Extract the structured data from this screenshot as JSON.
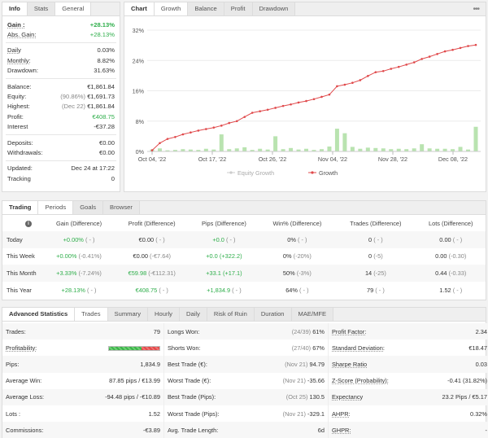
{
  "info": {
    "tabs": [
      "Info",
      "Stats",
      "General"
    ],
    "rows": [
      {
        "label": "Gain :",
        "value": "+28.13%",
        "cls": "pos",
        "u": true,
        "bold": true
      },
      {
        "label": "Abs. Gain:",
        "value": "+28.13%",
        "cls": "pos",
        "u": true
      },
      {
        "sep": true
      },
      {
        "label": "Daily",
        "value": "0.03%",
        "u": true
      },
      {
        "label": "Monthly:",
        "value": "8.82%",
        "u": true
      },
      {
        "label": "Drawdown:",
        "value": "31.63%"
      },
      {
        "sep": true
      },
      {
        "label": "Balance:",
        "value": "€1,861.84"
      },
      {
        "label": "Equity:",
        "prefix": "(90.86%)",
        "value": "€1,691.73"
      },
      {
        "label": "Highest:",
        "prefix": "(Dec 22)",
        "value": "€1,861.84",
        "muted": true
      },
      {
        "label": "Profit:",
        "value": "€408.75",
        "cls": "pos"
      },
      {
        "label": "Interest",
        "value": "-€37.28"
      },
      {
        "sep": true
      },
      {
        "label": "Deposits:",
        "value": "€0.00"
      },
      {
        "label": "Withdrawals:",
        "value": "€0.00"
      },
      {
        "sep": true
      },
      {
        "label": "Updated:",
        "value": "Dec 24 at 17:22"
      },
      {
        "label": "Tracking",
        "value": "0"
      }
    ]
  },
  "chart": {
    "tabs": [
      "Chart",
      "Growth",
      "Balance",
      "Profit",
      "Drawdown"
    ],
    "menu_icon": "dots-icon",
    "legend": [
      {
        "name": "Equity Growth",
        "color": "#cccccc"
      },
      {
        "name": "Growth",
        "color": "#e0494b"
      }
    ]
  },
  "chart_data": {
    "type": "line",
    "x_ticks": [
      "Oct 04, '22",
      "Oct 17, '22",
      "Oct 26, '22",
      "Nov 04, '22",
      "Nov 28, '22",
      "Dec 08, '22"
    ],
    "y_ticks": [
      "0%",
      "8%",
      "16%",
      "24%",
      "32%"
    ],
    "ylim": [
      0,
      32
    ],
    "series": [
      {
        "name": "Growth",
        "color": "#e0494b",
        "values": [
          0.3,
          2.2,
          3.3,
          3.8,
          4.5,
          5.0,
          5.5,
          5.9,
          6.3,
          6.8,
          7.5,
          8.0,
          9.1,
          10.2,
          10.6,
          11.0,
          11.5,
          12.0,
          12.4,
          12.9,
          13.3,
          13.8,
          14.4,
          15.0,
          17.2,
          17.6,
          18.1,
          18.8,
          19.9,
          20.9,
          21.2,
          21.8,
          22.3,
          22.9,
          23.5,
          24.4,
          25.0,
          25.7,
          26.4,
          26.8,
          27.3,
          27.8,
          28.1
        ]
      },
      {
        "name": "Profit bars",
        "color": "#b9e3b0",
        "values": [
          0.5,
          0.8,
          0.3,
          0.4,
          0.6,
          0.5,
          0.4,
          0.7,
          0.5,
          4.5,
          0.6,
          0.8,
          1.1,
          0.4,
          0.7,
          0.5,
          4.0,
          0.6,
          0.9,
          0.5,
          0.7,
          0.4,
          0.6,
          1.3,
          6.0,
          4.8,
          1.2,
          0.7,
          1.0,
          0.9,
          0.8,
          0.6,
          0.7,
          0.6,
          0.8,
          1.9,
          0.8,
          0.7,
          0.7,
          0.6,
          1.2,
          0.5,
          6.5
        ]
      }
    ]
  },
  "trading": {
    "tabs": [
      "Trading",
      "Periods",
      "Goals",
      "Browser"
    ],
    "headers": [
      "Gain (Difference)",
      "Profit (Difference)",
      "Pips (Difference)",
      "Win% (Difference)",
      "Trades (Difference)",
      "Lots (Difference)"
    ],
    "rows": [
      {
        "label": "Today",
        "gain": "+0.00%",
        "gain_d": "( - )",
        "profit": "€0.00",
        "profit_d": "( - )",
        "pips": "+0.0",
        "pips_d": "( - )",
        "win": "0%",
        "win_d": "( - )",
        "trades": "0",
        "trades_d": "( - )",
        "lots": "0.00",
        "lots_d": "( - )"
      },
      {
        "label": "This Week",
        "gain": "+0.00%",
        "gain_d": "(-0.41%)",
        "profit": "€0.00",
        "profit_d": "(-€7.64)",
        "pips": "+0.0",
        "pips_d": "(+322.2)",
        "win": "0%",
        "win_d": "(-20%)",
        "trades": "0",
        "trades_d": "(-5)",
        "lots": "0.00",
        "lots_d": "(-0.30)"
      },
      {
        "label": "This Month",
        "gain": "+3.33%",
        "gain_d": "(-7.24%)",
        "profit": "€59.98",
        "profit_d": "(-€112.31)",
        "pips": "+33.1",
        "pips_d": "(+17.1)",
        "win": "50%",
        "win_d": "(-3%)",
        "trades": "14",
        "trades_d": "(-25)",
        "lots": "0.44",
        "lots_d": "(-0.33)"
      },
      {
        "label": "This Year",
        "gain": "+28.13%",
        "gain_d": "( - )",
        "profit": "€408.75",
        "profit_d": "( - )",
        "pips": "+1,834.9",
        "pips_d": "( - )",
        "win": "64%",
        "win_d": "( - )",
        "trades": "79",
        "trades_d": "( - )",
        "lots": "1.52",
        "lots_d": "( - )"
      }
    ]
  },
  "adv": {
    "tabs": [
      "Advanced Statistics",
      "Trades",
      "Summary",
      "Hourly",
      "Daily",
      "Risk of Ruin",
      "Duration",
      "MAE/MFE"
    ],
    "col1": [
      {
        "label": "Trades:",
        "value": "79"
      },
      {
        "label": "Profitability:",
        "bar": true
      },
      {
        "label": "Pips:",
        "value": "1,834.9"
      },
      {
        "label": "Average Win:",
        "value": "87.85 pips / €13.99"
      },
      {
        "label": "Average Loss:",
        "value": "-94.48 pips / -€10.89"
      },
      {
        "label": "Lots :",
        "value": "1.52"
      },
      {
        "label": "Commissions:",
        "value": "-€3.89"
      }
    ],
    "col2": [
      {
        "label": "Longs Won:",
        "muted": "(24/39)",
        "value": "61%"
      },
      {
        "label": "Shorts Won:",
        "muted": "(27/40)",
        "value": "67%"
      },
      {
        "label": "Best Trade (€):",
        "muted": "(Nov 21)",
        "value": "94.79"
      },
      {
        "label": "Worst Trade (€):",
        "muted": "(Nov 21)",
        "value": "-35.66"
      },
      {
        "label": "Best Trade (Pips):",
        "muted": "(Oct 25)",
        "value": "130.5"
      },
      {
        "label": "Worst Trade (Pips):",
        "muted": "(Nov 21)",
        "value": "-329.1"
      },
      {
        "label": "Avg. Trade Length:",
        "muted": "",
        "value": "6d"
      }
    ],
    "col3": [
      {
        "label": "Profit Factor:",
        "value": "2.34"
      },
      {
        "label": "Standard Deviation:",
        "value": "€18.47"
      },
      {
        "label": "Sharpe Ratio",
        "value": "0.03"
      },
      {
        "label": "Z-Score (Probability):",
        "value": "-0.41 (31.82%)"
      },
      {
        "label": "Expectancy",
        "value": "23.2 Pips / €5.17"
      },
      {
        "label": "AHPR:",
        "value": "0.32%"
      },
      {
        "label": "GHPR:",
        "value": "-"
      }
    ],
    "profitability_win_fraction": 0.65
  }
}
